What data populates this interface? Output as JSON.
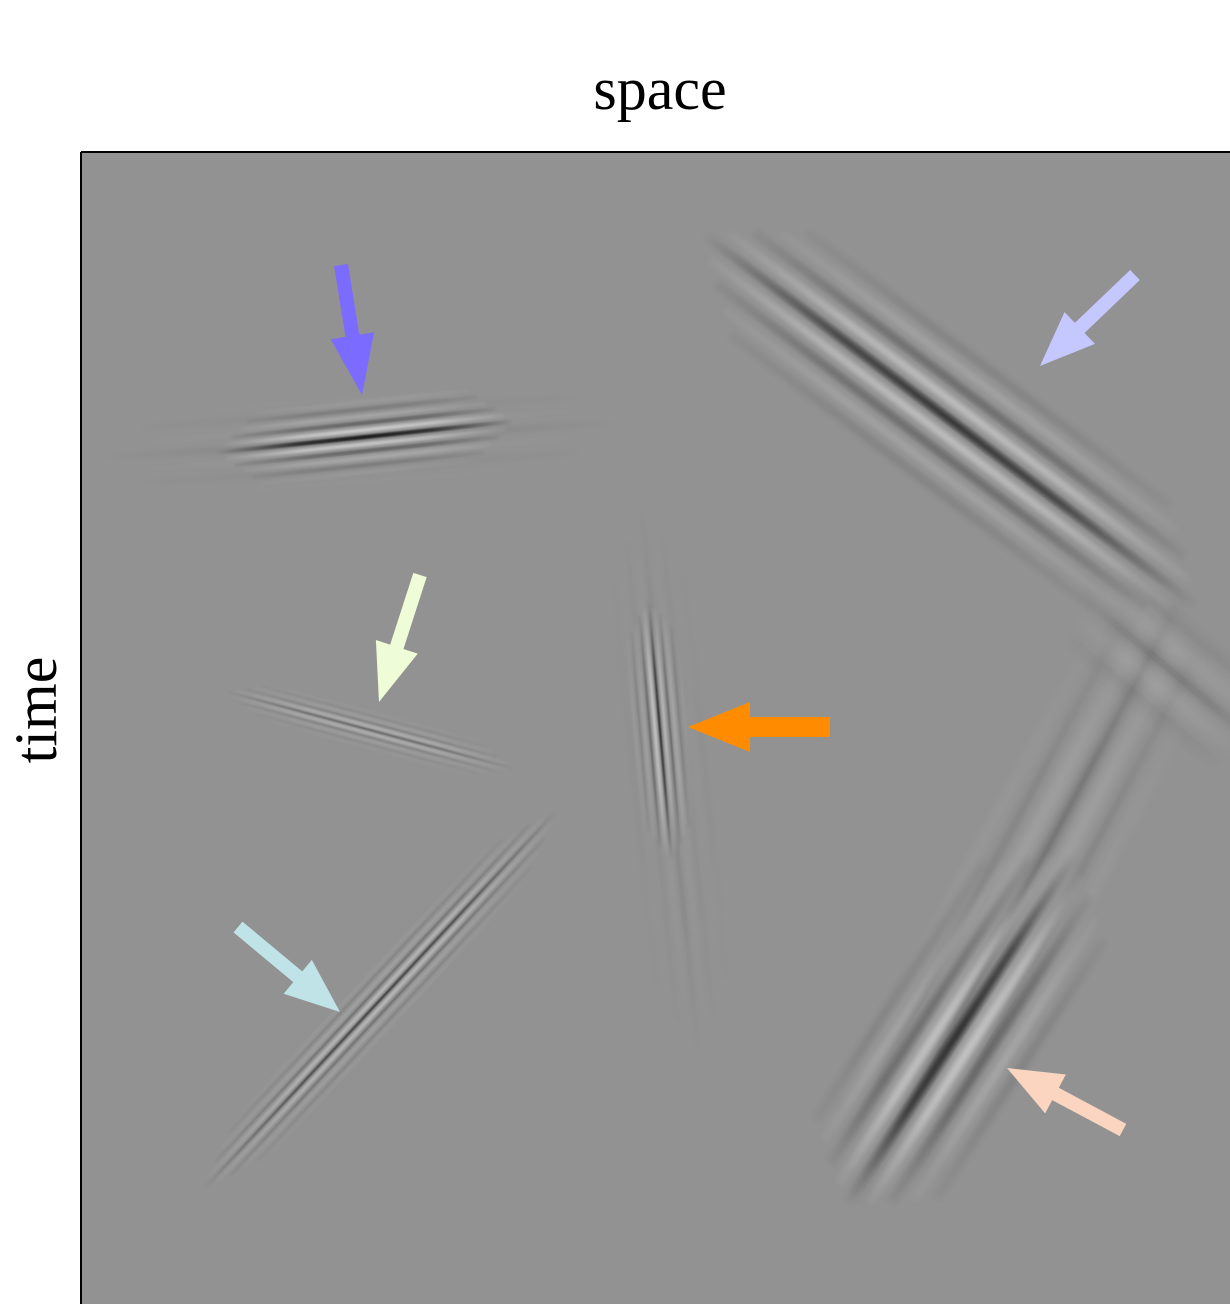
{
  "labels": {
    "x_axis": "space",
    "y_axis": "time"
  }
}
